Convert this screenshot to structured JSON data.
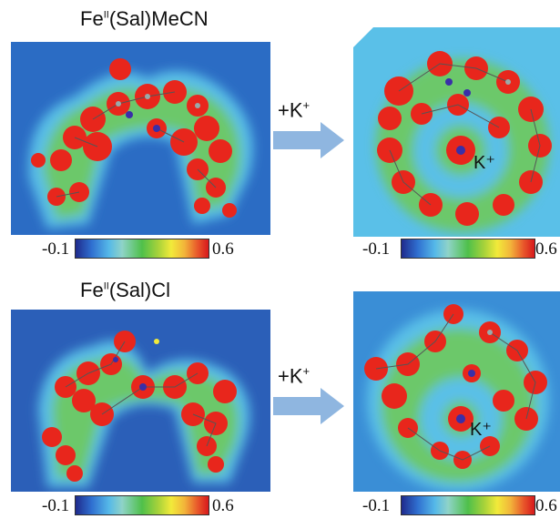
{
  "panels": {
    "top_left": {
      "title_base": "Fe",
      "title_sup": "II",
      "title_rest": "(Sal)MeCN"
    },
    "bottom_left": {
      "title_base": "Fe",
      "title_sup": "II",
      "title_rest": "(Sal)Cl"
    },
    "top_right": {
      "ion_label": "K⁺"
    },
    "bottom_right": {
      "ion_label": "K⁺"
    }
  },
  "arrows": {
    "top": {
      "label": "+K",
      "label_sup": "+"
    },
    "bottom": {
      "label": "+K",
      "label_sup": "+"
    }
  },
  "colorbar": {
    "min": "-0.1",
    "max": "0.6"
  },
  "colors": {
    "density_high": "#e8261c",
    "density_mid": "#4cc04a",
    "density_low": "#5ab8e6",
    "background": "#2b5fb8",
    "arrow": "#8fb6e0"
  }
}
